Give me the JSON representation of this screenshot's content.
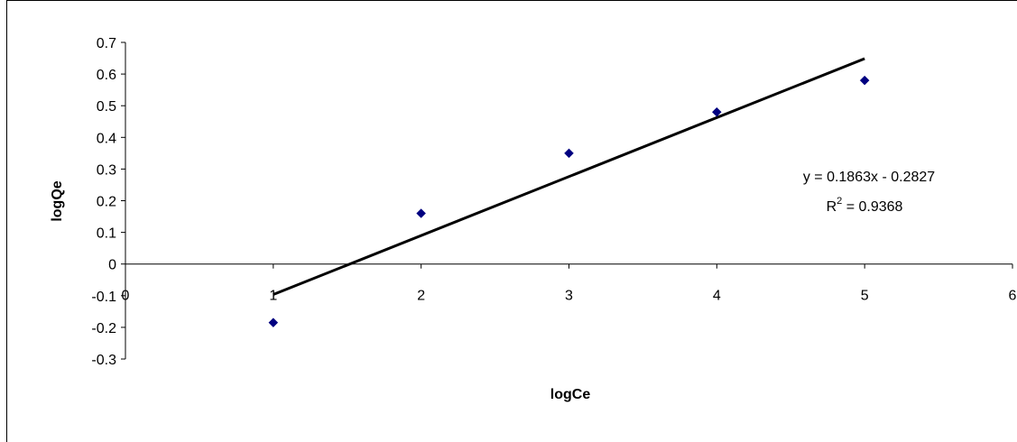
{
  "chart_data": {
    "type": "scatter",
    "title": "",
    "xlabel": "logCe",
    "ylabel": "logQe",
    "xlim": [
      0,
      6
    ],
    "ylim": [
      -0.3,
      0.7
    ],
    "x_ticks": [
      "0",
      "1",
      "2",
      "3",
      "4",
      "5",
      "6"
    ],
    "y_ticks": [
      "0.7",
      "0.6",
      "0.5",
      "0.4",
      "0.3",
      "0.2",
      "0.1",
      "0",
      "-0.1",
      "-0.2",
      "-0.3"
    ],
    "grid": false,
    "series": [
      {
        "x": [
          1,
          2,
          3,
          4,
          5
        ],
        "y": [
          -0.185,
          0.16,
          0.35,
          0.48,
          0.58
        ],
        "marker": "diamond",
        "color": "#000080"
      }
    ],
    "trendline": {
      "type": "linear",
      "slope": 0.1863,
      "intercept": -0.2827,
      "x_range": [
        1,
        5
      ],
      "color": "#000000",
      "equation_label": "y = 0.1863x - 0.2827",
      "r2_prefix": "R",
      "r2_sup": "2",
      "r2_suffix": " = 0.9368"
    }
  }
}
